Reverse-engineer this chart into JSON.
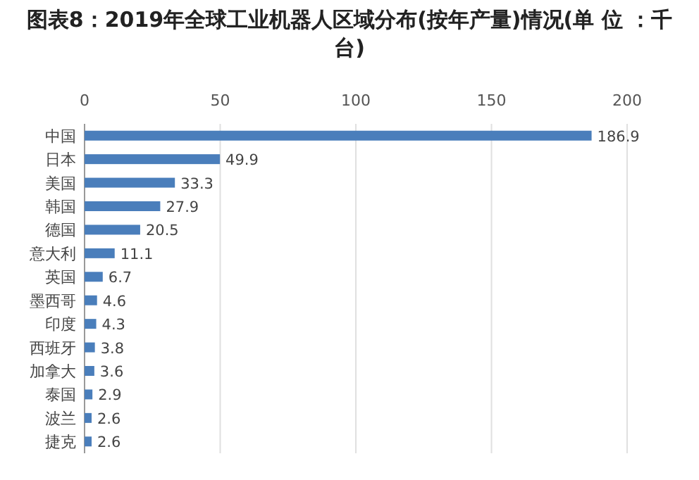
{
  "chart_data": {
    "type": "bar",
    "orientation": "horizontal",
    "title": "图表8：2019年全球工业机器人区域分布(按年产量)情况(单 位 ：千台)",
    "categories": [
      "中国",
      "日本",
      "美国",
      "韩国",
      "德国",
      "意大利",
      "英国",
      "墨西哥",
      "印度",
      "西班牙",
      "加拿大",
      "泰国",
      "波兰",
      "捷克"
    ],
    "values": [
      186.9,
      49.9,
      33.3,
      27.9,
      20.5,
      11.1,
      6.7,
      4.6,
      4.3,
      3.8,
      3.6,
      2.9,
      2.6,
      2.6
    ],
    "color": "#4a7ebb",
    "xlim": [
      0,
      200
    ],
    "xticks": [
      0,
      50,
      100,
      150,
      200
    ],
    "grid": "x",
    "data_labels": true
  }
}
